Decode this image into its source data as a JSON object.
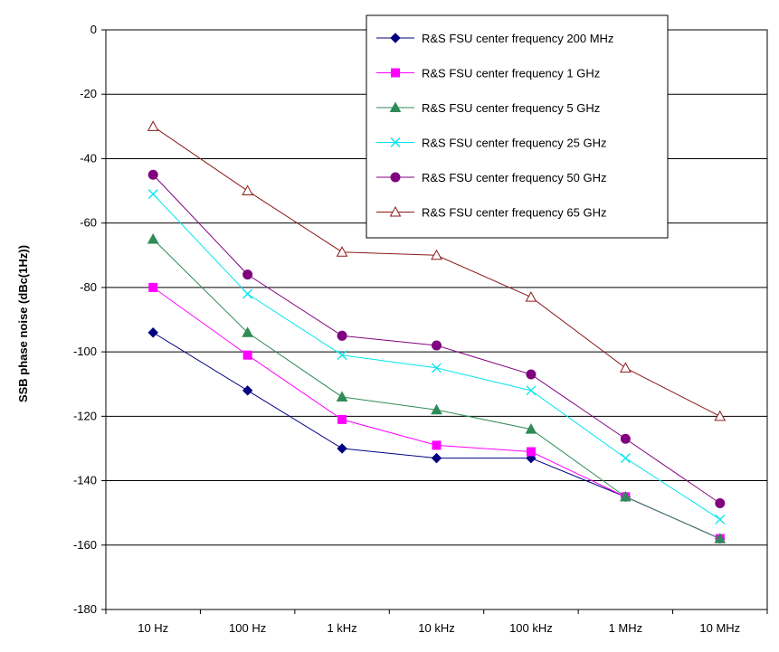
{
  "chart_data": {
    "type": "line",
    "title": "",
    "xlabel": "",
    "ylabel": "SSB phase noise (dBc(1Hz))",
    "categories": [
      "10 Hz",
      "100 Hz",
      "1 kHz",
      "10 kHz",
      "100 kHz",
      "1 MHz",
      "10 MHz"
    ],
    "ylim": [
      -180,
      0
    ],
    "yticks": [
      0,
      -20,
      -40,
      -60,
      -80,
      -100,
      -120,
      -140,
      -160,
      -180
    ],
    "grid": "horizontal",
    "legend_position": "top-right",
    "series": [
      {
        "name": "R&S FSU center frequency 200 MHz",
        "color": "#000080",
        "marker": "diamond",
        "values": [
          -94,
          -112,
          -130,
          -133,
          -133,
          -145,
          -158
        ]
      },
      {
        "name": "R&S FSU center frequency 1 GHz",
        "color": "#FF00FF",
        "marker": "square",
        "values": [
          -80,
          -101,
          -121,
          -129,
          -131,
          -145,
          -158
        ]
      },
      {
        "name": "R&S FSU center frequency 5 GHz",
        "color": "#2E8B57",
        "marker": "triangle",
        "values": [
          -65,
          -94,
          -114,
          -118,
          -124,
          -145,
          -158
        ]
      },
      {
        "name": "R&S FSU center frequency 25 GHz",
        "color": "#00E5EE",
        "marker": "x",
        "values": [
          -51,
          -82,
          -101,
          -105,
          -112,
          -133,
          -152
        ]
      },
      {
        "name": "R&S FSU center frequency 50 GHz",
        "color": "#800080",
        "marker": "circle",
        "values": [
          -45,
          -76,
          -95,
          -98,
          -107,
          -127,
          -147
        ]
      },
      {
        "name": "R&S FSU center frequency 65 GHz",
        "color": "#8B1A1A",
        "marker": "open-triangle",
        "values": [
          -30,
          -50,
          -69,
          -70,
          -83,
          -105,
          -120
        ]
      }
    ]
  }
}
